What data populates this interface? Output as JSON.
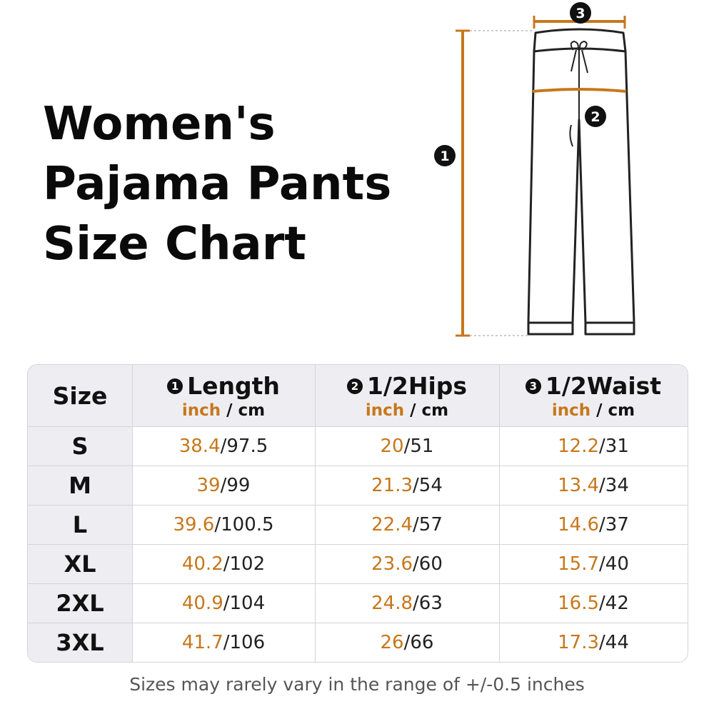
{
  "title": {
    "line1": "Women's",
    "line2": "Pajama Pants",
    "line3": "Size Chart"
  },
  "diagram": {
    "markers": [
      "1",
      "2",
      "3"
    ],
    "colors": {
      "measure_line": "#c7771b",
      "outline": "#222222"
    }
  },
  "table": {
    "headers": [
      {
        "label": "Size"
      },
      {
        "marker": "1",
        "label": "Length",
        "unit_a": "inch",
        "slash": " / ",
        "unit_b": "cm"
      },
      {
        "marker": "2",
        "label": "1/2Hips",
        "unit_a": "inch",
        "slash": " / ",
        "unit_b": "cm"
      },
      {
        "marker": "3",
        "label": "1/2Waist",
        "unit_a": "inch",
        "slash": " / ",
        "unit_b": "cm"
      }
    ],
    "rows": [
      {
        "size": "S",
        "length": [
          "38.4",
          "97.5"
        ],
        "hips": [
          "20",
          "51"
        ],
        "waist": [
          "12.2",
          "31"
        ]
      },
      {
        "size": "M",
        "length": [
          "39",
          "99"
        ],
        "hips": [
          "21.3",
          "54"
        ],
        "waist": [
          "13.4",
          "34"
        ]
      },
      {
        "size": "L",
        "length": [
          "39.6",
          "100.5"
        ],
        "hips": [
          "22.4",
          "57"
        ],
        "waist": [
          "14.6",
          "37"
        ]
      },
      {
        "size": "XL",
        "length": [
          "40.2",
          "102"
        ],
        "hips": [
          "23.6",
          "60"
        ],
        "waist": [
          "15.7",
          "40"
        ]
      },
      {
        "size": "2XL",
        "length": [
          "40.9",
          "104"
        ],
        "hips": [
          "24.8",
          "63"
        ],
        "waist": [
          "16.5",
          "42"
        ]
      },
      {
        "size": "3XL",
        "length": [
          "41.7",
          "106"
        ],
        "hips": [
          "26",
          "66"
        ],
        "waist": [
          "17.3",
          "44"
        ]
      }
    ],
    "slash": "/",
    "colors": {
      "inch": "#c7771b",
      "header_bg": "#eeeef2",
      "border": "#d4d4d8"
    }
  },
  "footnote": "Sizes may rarely vary in the range of +/-0.5 inches"
}
